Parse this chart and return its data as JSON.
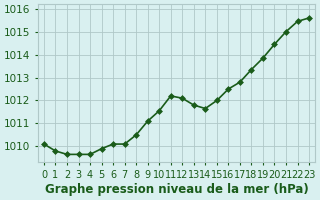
{
  "x": [
    0,
    1,
    2,
    3,
    4,
    5,
    6,
    7,
    8,
    9,
    10,
    11,
    12,
    13,
    14,
    15,
    16,
    17,
    18,
    19,
    20,
    21,
    22,
    23
  ],
  "y": [
    1010.1,
    1009.8,
    1009.65,
    1009.65,
    1009.65,
    1009.9,
    1010.1,
    1010.1,
    1010.5,
    1011.1,
    1011.55,
    1012.2,
    1012.1,
    1011.8,
    1011.65,
    1012.0,
    1012.5,
    1012.8,
    1013.35,
    1013.85,
    1014.45,
    1015.0,
    1015.45,
    1015.6
  ],
  "line_color": "#1a5c1a",
  "marker_color": "#1a5c1a",
  "bg_color": "#d9f0f0",
  "grid_color": "#b0c8c8",
  "ylabel_ticks": [
    1010,
    1011,
    1012,
    1013,
    1014,
    1015,
    1016
  ],
  "xlabel_label": "Graphe pression niveau de la mer (hPa)",
  "ylim": [
    1009.3,
    1016.2
  ],
  "xlim": [
    -0.5,
    23.5
  ],
  "xlabel_fontsize": 8.5,
  "tick_fontsize": 7.5,
  "marker_size": 3,
  "line_width": 1.2
}
